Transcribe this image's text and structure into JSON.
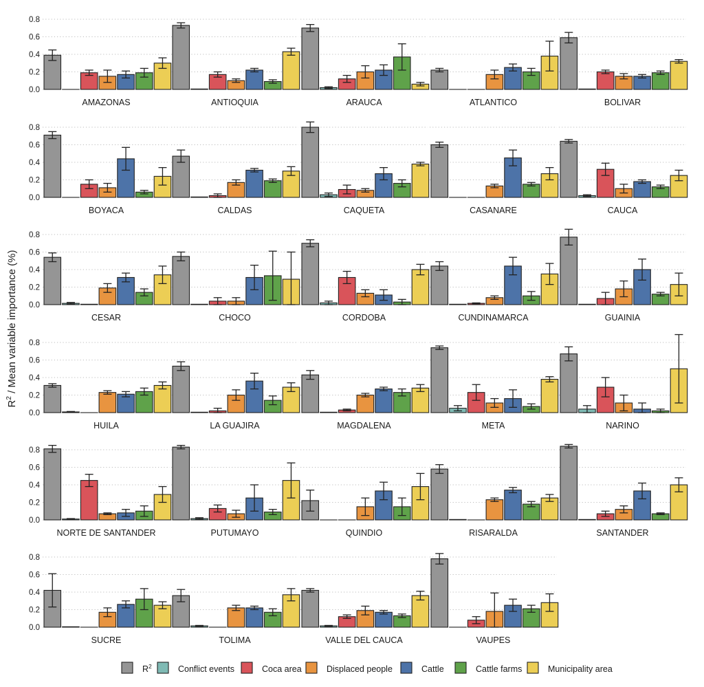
{
  "chart_data": {
    "type": "bar",
    "ylabel_base": "R",
    "ylabel_sup": "2",
    "ylabel_rest": " / Mean variable importance (%)",
    "ylim": [
      0,
      0.8
    ],
    "yticks": [
      "0.0",
      "0.2",
      "0.4",
      "0.6",
      "0.8"
    ],
    "grid": "horizontal dotted",
    "legend_position": "bottom",
    "series": [
      {
        "name": "R2",
        "legend_label": "R",
        "legend_sup": "2",
        "color": "#959595"
      },
      {
        "name": "Conflict events",
        "legend_label": "Conflict events",
        "legend_sup": "",
        "color": "#7fbab4"
      },
      {
        "name": "Coca area",
        "legend_label": "Coca area",
        "legend_sup": "",
        "color": "#d9545a"
      },
      {
        "name": "Displaced people",
        "legend_label": "Displaced people",
        "legend_sup": "",
        "color": "#e89440"
      },
      {
        "name": "Cattle",
        "legend_label": "Cattle",
        "legend_sup": "",
        "color": "#4d73a8"
      },
      {
        "name": "Cattle farms",
        "legend_label": "Cattle farms",
        "legend_sup": "",
        "color": "#5fa24a"
      },
      {
        "name": "Municipality area",
        "legend_label": "Municipality area",
        "legend_sup": "",
        "color": "#ecce55"
      }
    ],
    "panels": [
      {
        "label": "AMAZONAS",
        "values": [
          0.39,
          0,
          0.19,
          0.15,
          0.17,
          0.19,
          0.3
        ],
        "errors": [
          0.06,
          0,
          0.03,
          0.07,
          0.04,
          0.05,
          0.06
        ]
      },
      {
        "label": "ANTIOQUIA",
        "values": [
          0.73,
          0.005,
          0.17,
          0.1,
          0.22,
          0.09,
          0.43
        ],
        "errors": [
          0.03,
          0.003,
          0.03,
          0.02,
          0.02,
          0.02,
          0.04
        ]
      },
      {
        "label": "ARAUCA",
        "values": [
          0.7,
          0.02,
          0.12,
          0.2,
          0.22,
          0.37,
          0.06
        ],
        "errors": [
          0.04,
          0.01,
          0.04,
          0.07,
          0.06,
          0.15,
          0.02
        ]
      },
      {
        "label": "ATLANTICO",
        "values": [
          0.22,
          0,
          0,
          0.17,
          0.25,
          0.2,
          0.38
        ],
        "errors": [
          0.02,
          0,
          0,
          0.05,
          0.04,
          0.04,
          0.17
        ]
      },
      {
        "label": "BOLIVAR",
        "values": [
          0.59,
          0.005,
          0.2,
          0.15,
          0.15,
          0.19,
          0.32
        ],
        "errors": [
          0.06,
          0.002,
          0.02,
          0.03,
          0.02,
          0.02,
          0.02
        ]
      },
      {
        "label": "BOYACA",
        "values": [
          0.71,
          0,
          0.15,
          0.11,
          0.44,
          0.06,
          0.24
        ],
        "errors": [
          0.04,
          0,
          0.05,
          0.05,
          0.13,
          0.02,
          0.1
        ]
      },
      {
        "label": "CALDAS",
        "values": [
          0.47,
          0.005,
          0.02,
          0.17,
          0.31,
          0.19,
          0.3
        ],
        "errors": [
          0.07,
          0.003,
          0.02,
          0.03,
          0.02,
          0.02,
          0.05
        ]
      },
      {
        "label": "CAQUETA",
        "values": [
          0.8,
          0.03,
          0.09,
          0.08,
          0.27,
          0.16,
          0.38
        ],
        "errors": [
          0.06,
          0.02,
          0.05,
          0.02,
          0.07,
          0.04,
          0.02
        ]
      },
      {
        "label": "CASANARE",
        "values": [
          0.6,
          0,
          0,
          0.13,
          0.45,
          0.15,
          0.27
        ],
        "errors": [
          0.03,
          0,
          0,
          0.02,
          0.09,
          0.02,
          0.07
        ]
      },
      {
        "label": "CAUCA",
        "values": [
          0.64,
          0.02,
          0.32,
          0.1,
          0.18,
          0.12,
          0.25
        ],
        "errors": [
          0.02,
          0.01,
          0.07,
          0.05,
          0.02,
          0.02,
          0.06
        ]
      },
      {
        "label": "CESAR",
        "values": [
          0.54,
          0.015,
          0.005,
          0.19,
          0.31,
          0.14,
          0.34
        ],
        "errors": [
          0.05,
          0.01,
          0.003,
          0.05,
          0.05,
          0.04,
          0.1
        ]
      },
      {
        "label": "CHOCO",
        "values": [
          0.55,
          0.005,
          0.04,
          0.04,
          0.31,
          0.33,
          0.29
        ],
        "errors": [
          0.05,
          0.003,
          0.04,
          0.04,
          0.14,
          0.28,
          0.31
        ]
      },
      {
        "label": "CORDOBA",
        "values": [
          0.7,
          0.02,
          0.31,
          0.13,
          0.11,
          0.03,
          0.4
        ],
        "errors": [
          0.04,
          0.02,
          0.07,
          0.04,
          0.06,
          0.03,
          0.06
        ]
      },
      {
        "label": "CUNDINAMARCA",
        "values": [
          0.44,
          0.005,
          0.015,
          0.08,
          0.44,
          0.1,
          0.35
        ],
        "errors": [
          0.05,
          0.003,
          0.005,
          0.02,
          0.1,
          0.05,
          0.12
        ]
      },
      {
        "label": "GUAINIA",
        "values": [
          0.77,
          0.005,
          0.07,
          0.18,
          0.4,
          0.12,
          0.23
        ],
        "errors": [
          0.09,
          0.003,
          0.07,
          0.09,
          0.12,
          0.02,
          0.13
        ]
      },
      {
        "label": "HUILA",
        "values": [
          0.31,
          0.008,
          0,
          0.23,
          0.21,
          0.24,
          0.31
        ],
        "errors": [
          0.02,
          0.005,
          0,
          0.02,
          0.03,
          0.04,
          0.04
        ]
      },
      {
        "label": "LA GUAJIRA",
        "values": [
          0.53,
          0.005,
          0.02,
          0.2,
          0.36,
          0.14,
          0.29
        ],
        "errors": [
          0.05,
          0.003,
          0.03,
          0.06,
          0.09,
          0.05,
          0.05
        ]
      },
      {
        "label": "MAGDALENA",
        "values": [
          0.43,
          0.005,
          0.03,
          0.2,
          0.27,
          0.23,
          0.28
        ],
        "errors": [
          0.05,
          0.003,
          0.01,
          0.02,
          0.02,
          0.04,
          0.04
        ]
      },
      {
        "label": "META",
        "values": [
          0.74,
          0.05,
          0.23,
          0.11,
          0.16,
          0.07,
          0.38
        ],
        "errors": [
          0.02,
          0.03,
          0.09,
          0.05,
          0.1,
          0.03,
          0.03
        ]
      },
      {
        "label": "NARINO",
        "values": [
          0.67,
          0.04,
          0.29,
          0.11,
          0.04,
          0.02,
          0.5
        ],
        "errors": [
          0.08,
          0.04,
          0.11,
          0.09,
          0.07,
          0.02,
          0.39
        ]
      },
      {
        "label": "NORTE DE SANTANDER",
        "values": [
          0.81,
          0.01,
          0.45,
          0.07,
          0.08,
          0.1,
          0.29
        ],
        "errors": [
          0.04,
          0.005,
          0.07,
          0.01,
          0.04,
          0.06,
          0.09
        ]
      },
      {
        "label": "PUTUMAYO",
        "values": [
          0.83,
          0.015,
          0.13,
          0.07,
          0.25,
          0.09,
          0.45
        ],
        "errors": [
          0.02,
          0.01,
          0.04,
          0.04,
          0.15,
          0.03,
          0.2
        ]
      },
      {
        "label": "QUINDIO",
        "values": [
          0.22,
          0,
          0,
          0.15,
          0.33,
          0.15,
          0.38
        ],
        "errors": [
          0.12,
          0,
          0,
          0.1,
          0.1,
          0.1,
          0.15
        ]
      },
      {
        "label": "RISARALDA",
        "values": [
          0.58,
          0.005,
          0,
          0.23,
          0.34,
          0.18,
          0.25
        ],
        "errors": [
          0.05,
          0.003,
          0,
          0.02,
          0.03,
          0.03,
          0.04
        ]
      },
      {
        "label": "SANTANDER",
        "values": [
          0.84,
          0.005,
          0.07,
          0.12,
          0.33,
          0.07,
          0.4
        ],
        "errors": [
          0.02,
          0.003,
          0.03,
          0.04,
          0.09,
          0.01,
          0.08
        ]
      },
      {
        "label": "SUCRE",
        "values": [
          0.42,
          0.005,
          0,
          0.17,
          0.26,
          0.32,
          0.25
        ],
        "errors": [
          0.19,
          0.003,
          0,
          0.05,
          0.04,
          0.12,
          0.04
        ]
      },
      {
        "label": "TOLIMA",
        "values": [
          0.36,
          0.015,
          0,
          0.22,
          0.22,
          0.17,
          0.37
        ],
        "errors": [
          0.07,
          0.005,
          0,
          0.03,
          0.02,
          0.04,
          0.07
        ]
      },
      {
        "label": "VALLE DEL CAUCA",
        "values": [
          0.42,
          0.015,
          0.12,
          0.19,
          0.17,
          0.13,
          0.36
        ],
        "errors": [
          0.02,
          0.005,
          0.02,
          0.05,
          0.02,
          0.02,
          0.05
        ]
      },
      {
        "label": "VAUPES",
        "values": [
          0.78,
          0,
          0.08,
          0.18,
          0.25,
          0.21,
          0.28
        ],
        "errors": [
          0.06,
          0,
          0.04,
          0.21,
          0.07,
          0.04,
          0.1
        ]
      }
    ]
  }
}
